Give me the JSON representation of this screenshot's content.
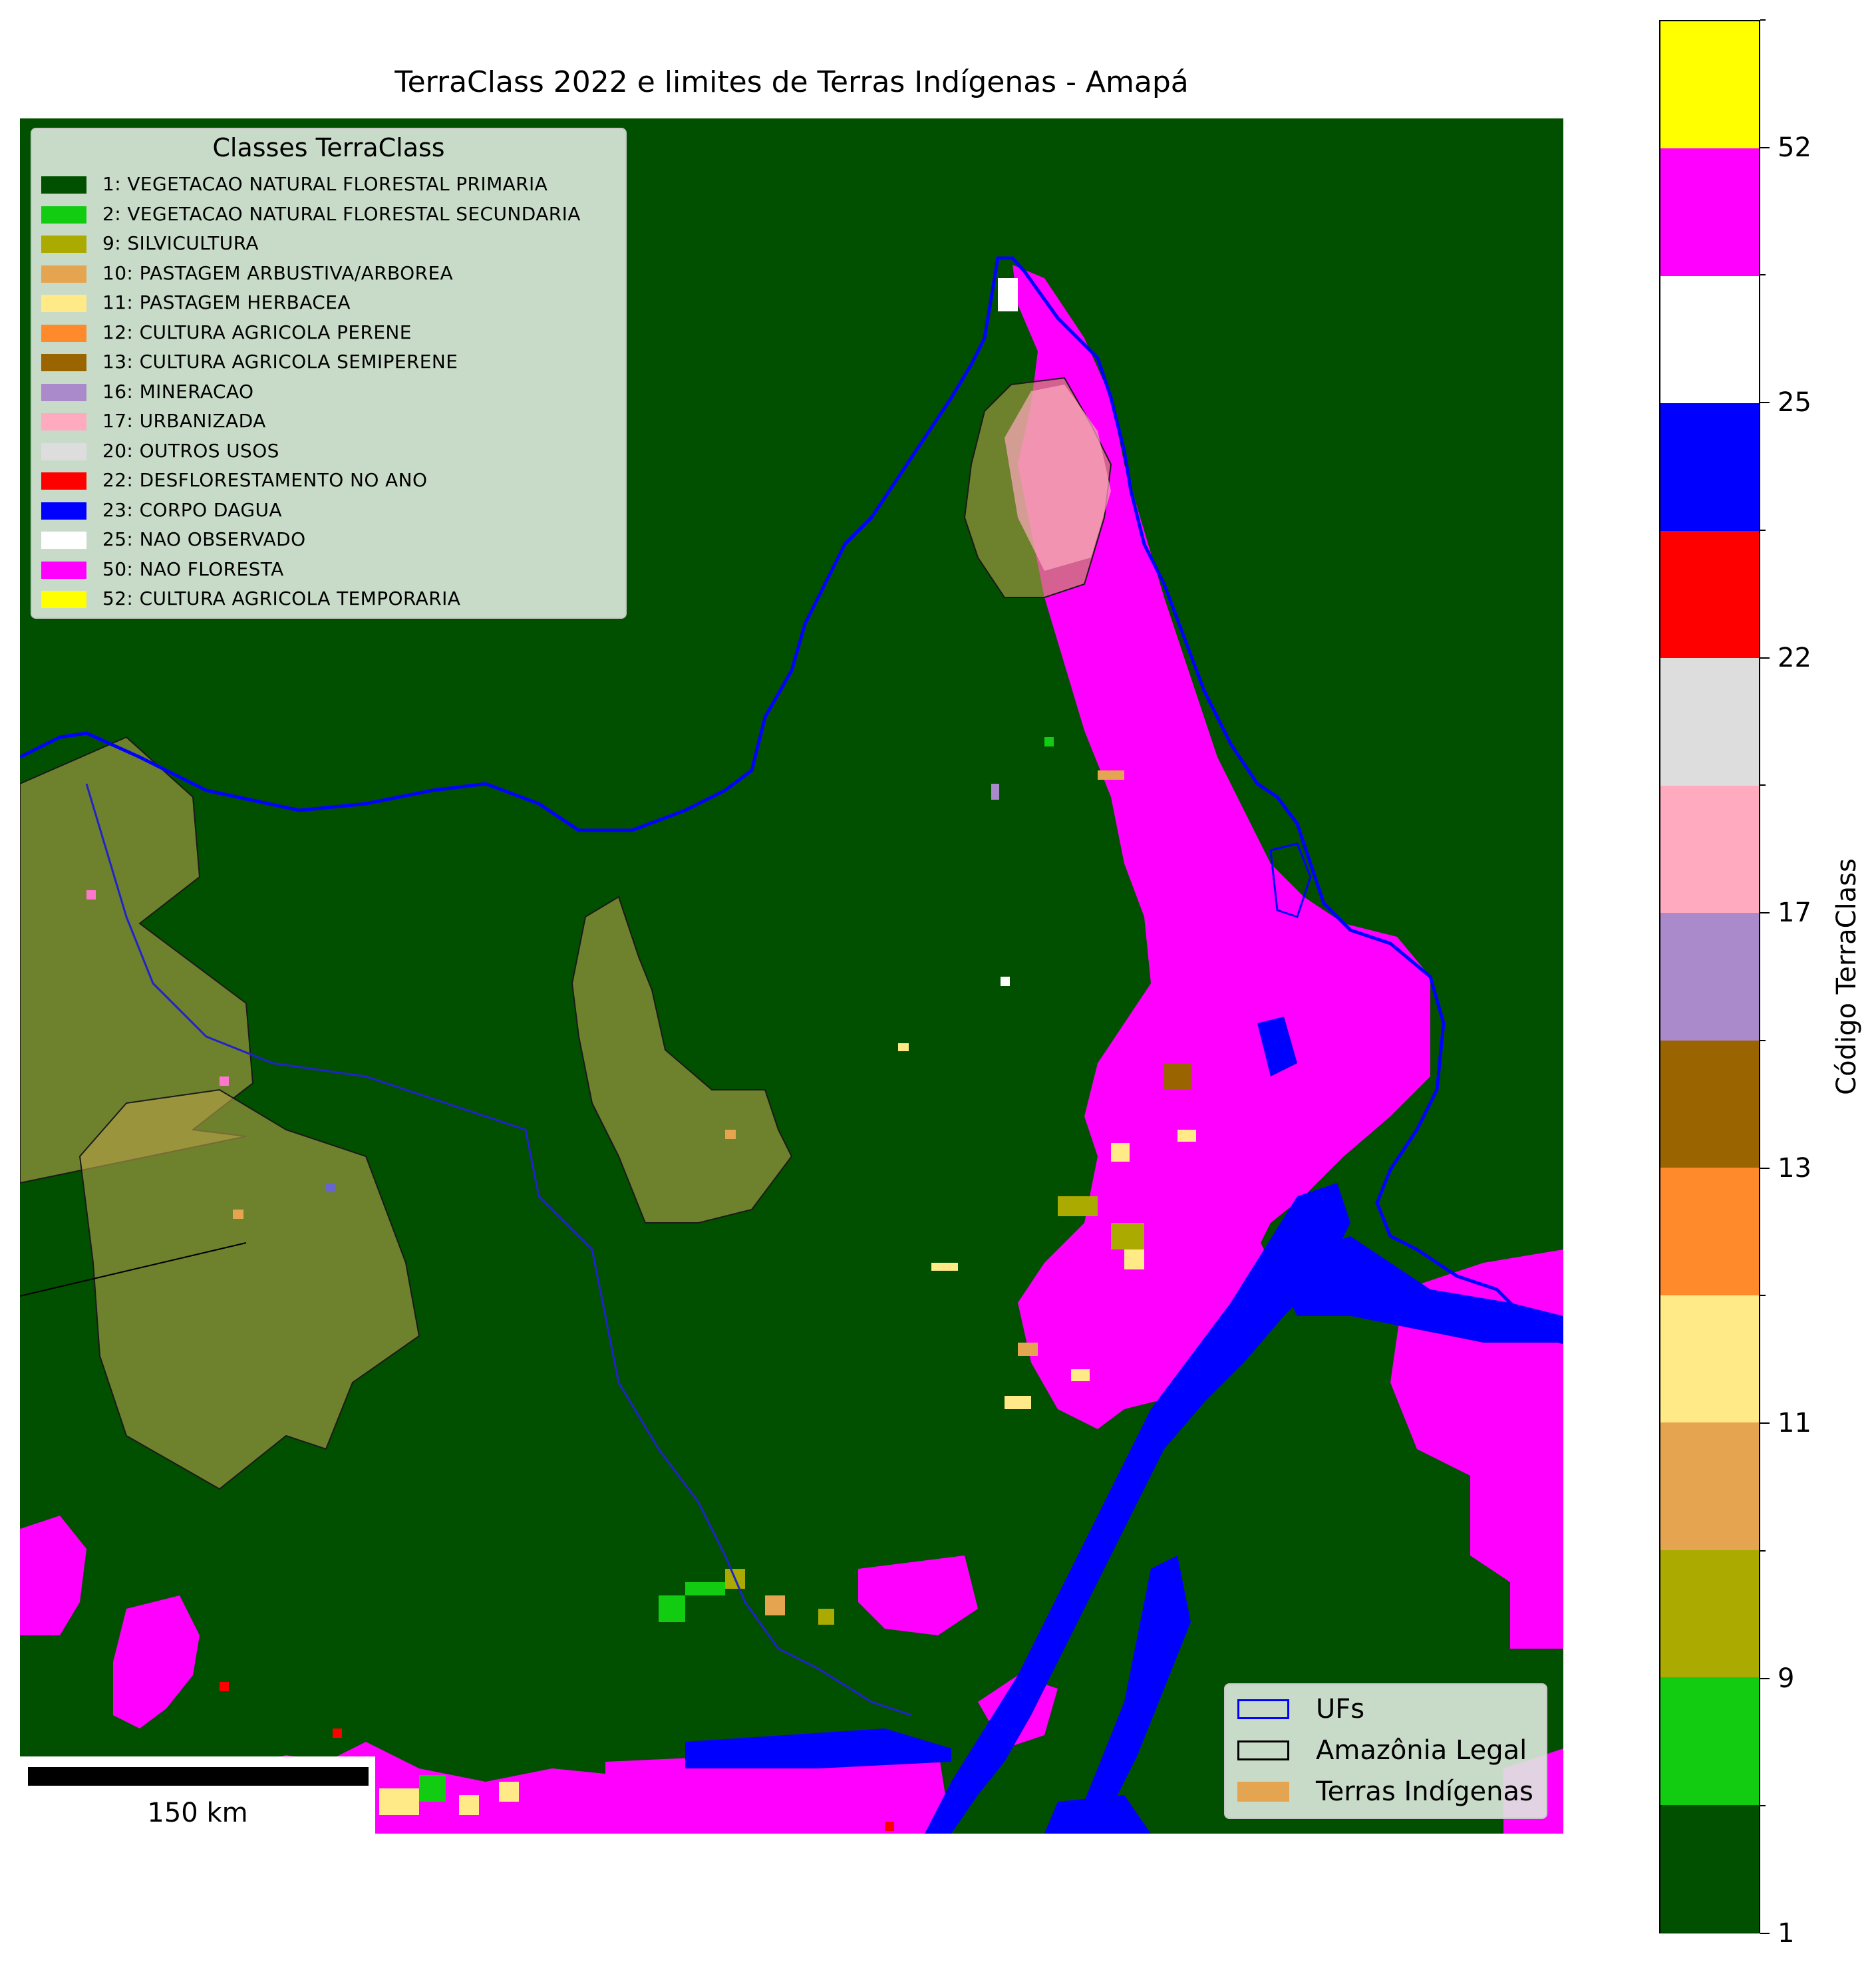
{
  "title": "TerraClass 2022 e limites de Terras Indígenas - Amapá",
  "legend_classes": {
    "title": "Classes TerraClass",
    "items": [
      {
        "label": "1: VEGETACAO NATURAL FLORESTAL PRIMARIA",
        "color": "#005000"
      },
      {
        "label": "2: VEGETACAO NATURAL FLORESTAL SECUNDARIA",
        "color": "#11cc11"
      },
      {
        "label": "9: SILVICULTURA",
        "color": "#aaaa00"
      },
      {
        "label": "10: PASTAGEM ARBUSTIVA/ARBOREA",
        "color": "#e5a550"
      },
      {
        "label": "11: PASTAGEM HERBACEA",
        "color": "#ffea87"
      },
      {
        "label": "12: CULTURA AGRICOLA PERENE",
        "color": "#ff8a2c"
      },
      {
        "label": "13: CULTURA AGRICOLA SEMIPERENE",
        "color": "#9a6400"
      },
      {
        "label": "16: MINERACAO",
        "color": "#ab8acb"
      },
      {
        "label": "17: URBANIZADA",
        "color": "#ffaabf"
      },
      {
        "label": "20: OUTROS USOS",
        "color": "#dddddd"
      },
      {
        "label": "22: DESFLORESTAMENTO NO ANO",
        "color": "#ff0000"
      },
      {
        "label": "23: CORPO DAGUA",
        "color": "#0000ff"
      },
      {
        "label": "25: NAO OBSERVADO",
        "color": "#ffffff"
      },
      {
        "label": "50: NAO FLORESTA",
        "color": "#ff00ff"
      },
      {
        "label": "52: CULTURA AGRICOLA TEMPORARIA",
        "color": "#ffff00"
      }
    ]
  },
  "legend_layers": {
    "items": [
      {
        "label": "UFs",
        "edge": "#0000ff",
        "fill": "none"
      },
      {
        "label": "Amazônia Legal",
        "edge": "#000000",
        "fill": "none"
      },
      {
        "label": "Terras Indígenas",
        "edge": "none",
        "fill": "#e5a550"
      }
    ]
  },
  "scalebar": {
    "label": "150 km"
  },
  "colorbar": {
    "label": "Código TerraClass",
    "tick_labels": [
      "1",
      "9",
      "11",
      "13",
      "17",
      "22",
      "25",
      "52"
    ]
  }
}
